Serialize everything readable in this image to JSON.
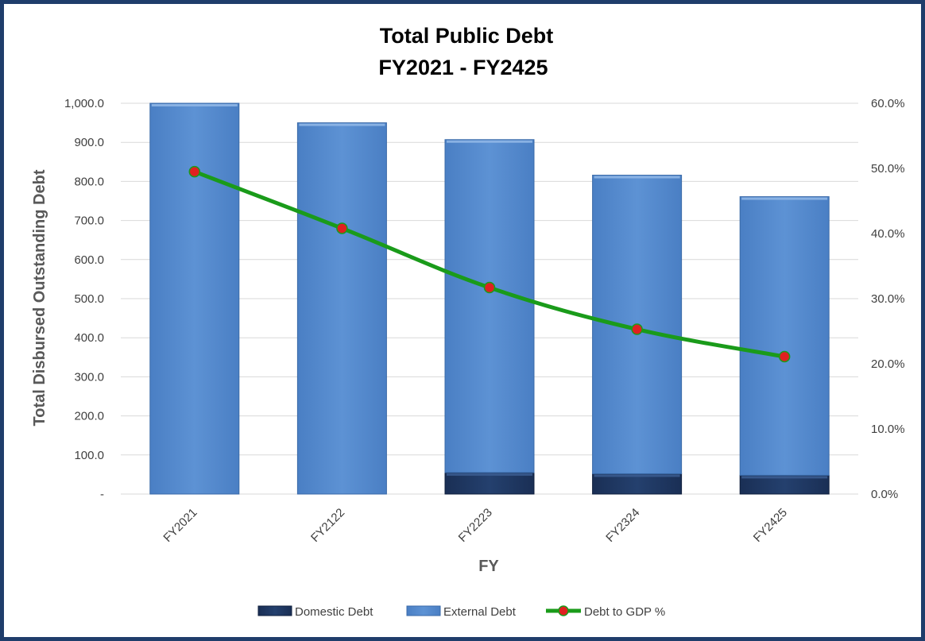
{
  "chart_data": {
    "type": "bar",
    "title": "Total Public Debt",
    "subtitle": "FY2021 - FY2425",
    "xlabel": "FY",
    "ylabel": "Total Disbursed Outstanding Debt",
    "categories": [
      "FY2021",
      "FY2122",
      "FY2223",
      "FY2324",
      "FY2425"
    ],
    "y_ticks": [
      "-",
      "100.0",
      "200.0",
      "300.0",
      "400.0",
      "500.0",
      "600.0",
      "700.0",
      "800.0",
      "900.0",
      "1,000.0"
    ],
    "y2_ticks": [
      "0.0%",
      "10.0%",
      "20.0%",
      "30.0%",
      "40.0%",
      "50.0%",
      "60.0%"
    ],
    "ylim": [
      0,
      1000
    ],
    "y2lim": [
      0,
      60
    ],
    "stacked": true,
    "grid": true,
    "legend_position": "bottom",
    "series": [
      {
        "name": "Domestic Debt",
        "type": "bar",
        "axis": "left",
        "color": "#1f3864",
        "values": [
          0,
          0,
          55,
          52,
          48
        ]
      },
      {
        "name": "External Debt",
        "type": "bar",
        "axis": "left",
        "color": "#5b8fd0",
        "values": [
          1000,
          950,
          852,
          764,
          713
        ]
      },
      {
        "name": "Debt to GDP %",
        "type": "line",
        "axis": "right",
        "color": "#1a9b1a",
        "marker_color": "#e02020",
        "values": [
          49.5,
          40.8,
          31.7,
          25.3,
          21.1
        ]
      }
    ]
  }
}
